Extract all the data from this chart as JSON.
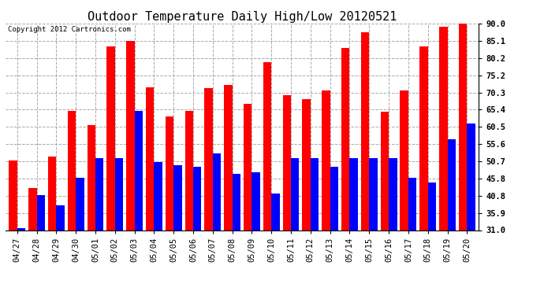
{
  "title": "Outdoor Temperature Daily High/Low 20120521",
  "copyright": "Copyright 2012 Cartronics.com",
  "dates": [
    "04/27",
    "04/28",
    "04/29",
    "04/30",
    "05/01",
    "05/02",
    "05/03",
    "05/04",
    "05/05",
    "05/06",
    "05/07",
    "05/08",
    "05/09",
    "05/10",
    "05/11",
    "05/12",
    "05/13",
    "05/14",
    "05/15",
    "05/16",
    "05/17",
    "05/18",
    "05/19",
    "05/20"
  ],
  "highs": [
    51.0,
    43.0,
    52.0,
    65.0,
    61.0,
    83.5,
    85.0,
    71.8,
    63.5,
    65.0,
    71.5,
    72.5,
    67.0,
    79.0,
    69.5,
    68.5,
    71.0,
    83.0,
    87.5,
    64.8,
    70.8,
    83.5,
    89.0,
    91.0
  ],
  "lows": [
    31.5,
    41.0,
    38.0,
    46.0,
    51.5,
    51.5,
    65.0,
    50.5,
    49.5,
    49.0,
    53.0,
    47.0,
    47.5,
    41.5,
    51.5,
    51.5,
    49.0,
    51.5,
    51.5,
    51.5,
    46.0,
    44.5,
    57.0,
    61.5
  ],
  "high_color": "#FF0000",
  "low_color": "#0000FF",
  "background_color": "#FFFFFF",
  "grid_color": "#AAAAAA",
  "ymin": 31.0,
  "ymax": 90.0,
  "yticks": [
    31.0,
    35.9,
    40.8,
    45.8,
    50.7,
    55.6,
    60.5,
    65.4,
    70.3,
    75.2,
    80.2,
    85.1,
    90.0
  ],
  "bar_width": 0.42,
  "title_fontsize": 11,
  "tick_fontsize": 7.5,
  "copyright_fontsize": 6.5
}
